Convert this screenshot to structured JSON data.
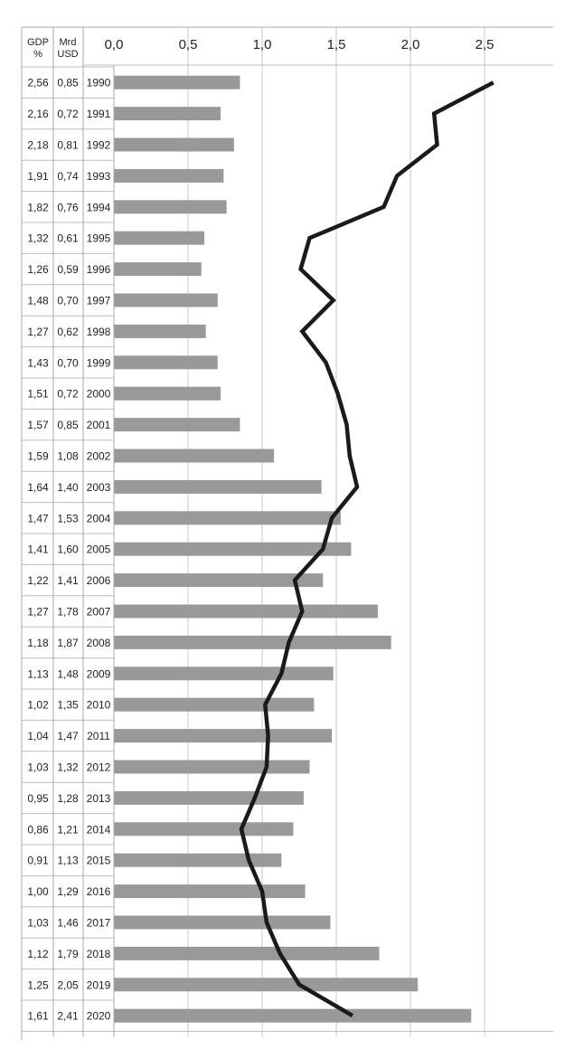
{
  "chart_data": {
    "type": "bar",
    "xlim": [
      0,
      2.75
    ],
    "x_ticks": [
      "0,0",
      "0,5",
      "1,0",
      "1,5",
      "2,0",
      "2,5"
    ],
    "grid": true,
    "column_headers": {
      "gdp": [
        "GDP",
        "%"
      ],
      "mrd": [
        "Mrd",
        "USD"
      ]
    },
    "years": [
      "1990",
      "1991",
      "1992",
      "1993",
      "1994",
      "1995",
      "1996",
      "1997",
      "1998",
      "1999",
      "2000",
      "2001",
      "2002",
      "2003",
      "2004",
      "2005",
      "2006",
      "2007",
      "2008",
      "2009",
      "2010",
      "2011",
      "2012",
      "2013",
      "2014",
      "2015",
      "2016",
      "2017",
      "2018",
      "2019",
      "2020"
    ],
    "series": [
      {
        "type": "bar",
        "color": "#999999",
        "values": [
          0.85,
          0.72,
          0.81,
          0.74,
          0.76,
          0.61,
          0.59,
          0.7,
          0.62,
          0.7,
          0.72,
          0.85,
          1.08,
          1.4,
          1.53,
          1.6,
          1.41,
          1.78,
          1.87,
          1.48,
          1.35,
          1.47,
          1.32,
          1.28,
          1.21,
          1.13,
          1.29,
          1.46,
          1.79,
          2.05,
          2.41
        ],
        "labels": [
          "0,85",
          "0,72",
          "0,81",
          "0,74",
          "0,76",
          "0,61",
          "0,59",
          "0,70",
          "0,62",
          "0,70",
          "0,72",
          "0,85",
          "1,08",
          "1,40",
          "1,53",
          "1,60",
          "1,41",
          "1,78",
          "1,87",
          "1,48",
          "1,35",
          "1,47",
          "1,32",
          "1,28",
          "1,21",
          "1,13",
          "1,29",
          "1,46",
          "1,79",
          "2,05",
          "2,41"
        ]
      },
      {
        "type": "line",
        "color": "#1a1a1a",
        "values": [
          2.56,
          2.16,
          2.18,
          1.91,
          1.82,
          1.32,
          1.26,
          1.48,
          1.27,
          1.43,
          1.51,
          1.57,
          1.59,
          1.64,
          1.47,
          1.41,
          1.22,
          1.27,
          1.18,
          1.13,
          1.02,
          1.04,
          1.03,
          0.95,
          0.86,
          0.91,
          1.0,
          1.03,
          1.12,
          1.25,
          1.61
        ],
        "labels": [
          "2,56",
          "2,16",
          "2,18",
          "1,91",
          "1,82",
          "1,32",
          "1,26",
          "1,48",
          "1,27",
          "1,43",
          "1,51",
          "1,57",
          "1,59",
          "1,64",
          "1,47",
          "1,41",
          "1,22",
          "1,27",
          "1,18",
          "1,13",
          "1,02",
          "1,04",
          "1,03",
          "0,95",
          "0,86",
          "0,91",
          "1,00",
          "1,03",
          "1,12",
          "1,25",
          "1,61"
        ]
      }
    ]
  }
}
